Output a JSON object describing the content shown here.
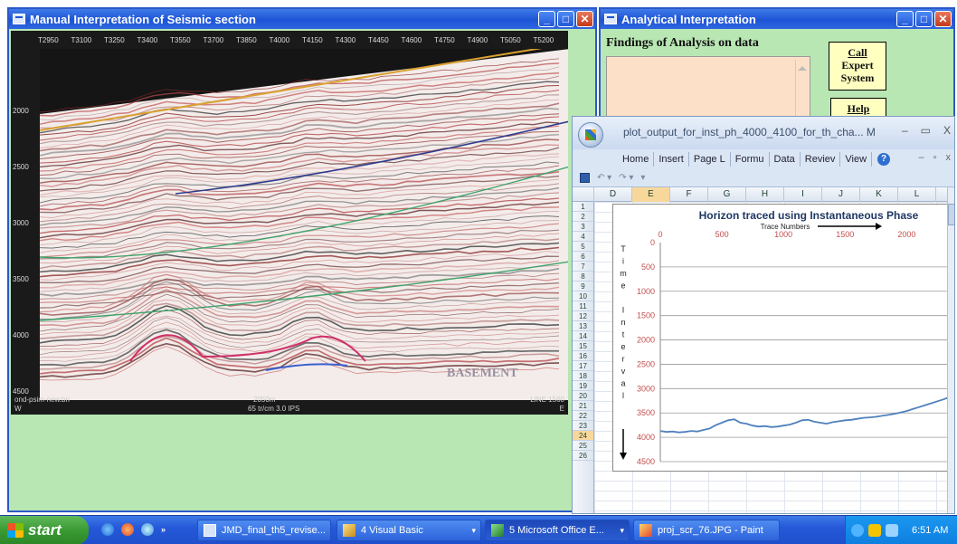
{
  "seismic_window": {
    "title": "Manual Interpretation of Seismic section",
    "trace_labels": [
      "T2950",
      "T3100",
      "T3250",
      "T3400",
      "T3550",
      "T3700",
      "T3850",
      "T4000",
      "T4150",
      "T4300",
      "T4450",
      "T4600",
      "T4750",
      "T4900",
      "T5050",
      "T5200"
    ],
    "depth_labels_left": [
      "2000",
      "2500",
      "3000",
      "3500",
      "4000",
      "4500"
    ],
    "depth_labels_right": [
      "2000",
      "2500",
      "3000",
      "3500",
      "4000",
      "4500"
    ],
    "basement_label": "BASEMENT",
    "footer_left": "ond-psim-new.bri",
    "footer_left2": "W",
    "footer_mid": "65 tr/cm  3.0 IPS",
    "footer_scale": "2050m",
    "footer_right": "LINE 1560",
    "footer_right2": "E"
  },
  "analytical_window": {
    "title": "Analytical Interpretation",
    "findings_label": "Findings of Analysis on data",
    "findings_text": "",
    "call_button": [
      "Call",
      "Expert",
      "System"
    ],
    "help_button": "Help"
  },
  "excel_window": {
    "title": "plot_output_for_inst_ph_4000_4100_for_th_cha... M",
    "ribbon_tabs": [
      "Home",
      "Insert",
      "Page L",
      "Formu",
      "Data",
      "Reviev",
      "View"
    ],
    "columns": [
      "D",
      "E",
      "F",
      "G",
      "H",
      "I",
      "J",
      "K",
      "L"
    ],
    "selected_column": "E",
    "rows": [
      "1",
      "2",
      "3",
      "4",
      "5",
      "6",
      "7",
      "8",
      "9",
      "10",
      "11",
      "12",
      "13",
      "14",
      "15",
      "16",
      "17",
      "18",
      "19",
      "20",
      "21",
      "22",
      "23",
      "24",
      "25",
      "26"
    ],
    "selected_row": "24"
  },
  "chart_data": {
    "type": "line",
    "title": "Horizon traced using Instantaneous Phase",
    "xlabel": "Trace Numbers",
    "ylabel": "Time Interval",
    "ylabel_letters": [
      "T",
      "i",
      "m",
      "e",
      "",
      "I",
      "n",
      "t",
      "e",
      "r",
      "v",
      "a",
      "l"
    ],
    "xlim": [
      0,
      2350
    ],
    "ylim": [
      0,
      4500
    ],
    "y_inverted": true,
    "x_axis_position": "top",
    "x_ticks": [
      "0",
      "500",
      "1000",
      "1500",
      "2000"
    ],
    "y_ticks": [
      "0",
      "500",
      "1000",
      "1500",
      "2000",
      "2500",
      "3000",
      "3500",
      "4000",
      "4500"
    ],
    "grid": "horizontal",
    "legend": "none",
    "line_color": "#4f81bd",
    "series": [
      {
        "x": [
          0,
          50,
          100,
          150,
          200,
          250,
          300,
          350,
          400,
          450,
          500,
          550,
          600,
          650,
          700,
          750,
          800,
          850,
          900,
          950,
          1000,
          1050,
          1100,
          1150,
          1200,
          1250,
          1300,
          1350,
          1400,
          1450,
          1500,
          1550,
          1600,
          1650,
          1700,
          1750,
          1800,
          1850,
          1900,
          1950,
          2000,
          2050,
          2100,
          2150,
          2200,
          2250,
          2300,
          2350
        ],
        "y": [
          3870,
          3890,
          3880,
          3900,
          3890,
          3870,
          3880,
          3850,
          3820,
          3750,
          3700,
          3650,
          3630,
          3700,
          3720,
          3760,
          3780,
          3770,
          3790,
          3780,
          3760,
          3740,
          3700,
          3650,
          3640,
          3680,
          3700,
          3720,
          3690,
          3670,
          3650,
          3640,
          3620,
          3600,
          3590,
          3580,
          3560,
          3540,
          3520,
          3490,
          3460,
          3420,
          3380,
          3340,
          3300,
          3260,
          3220,
          3170
        ]
      }
    ]
  },
  "taskbar": {
    "start_label": "start",
    "items": [
      {
        "label": "JMD_final_th5_revise...",
        "active": false
      },
      {
        "label": "4 Visual Basic",
        "active": false
      },
      {
        "label": "5 Microsoft Office E...",
        "active": true
      },
      {
        "label": "proj_scr_76.JPG - Paint",
        "active": false
      }
    ],
    "clock": "6:51 AM"
  }
}
